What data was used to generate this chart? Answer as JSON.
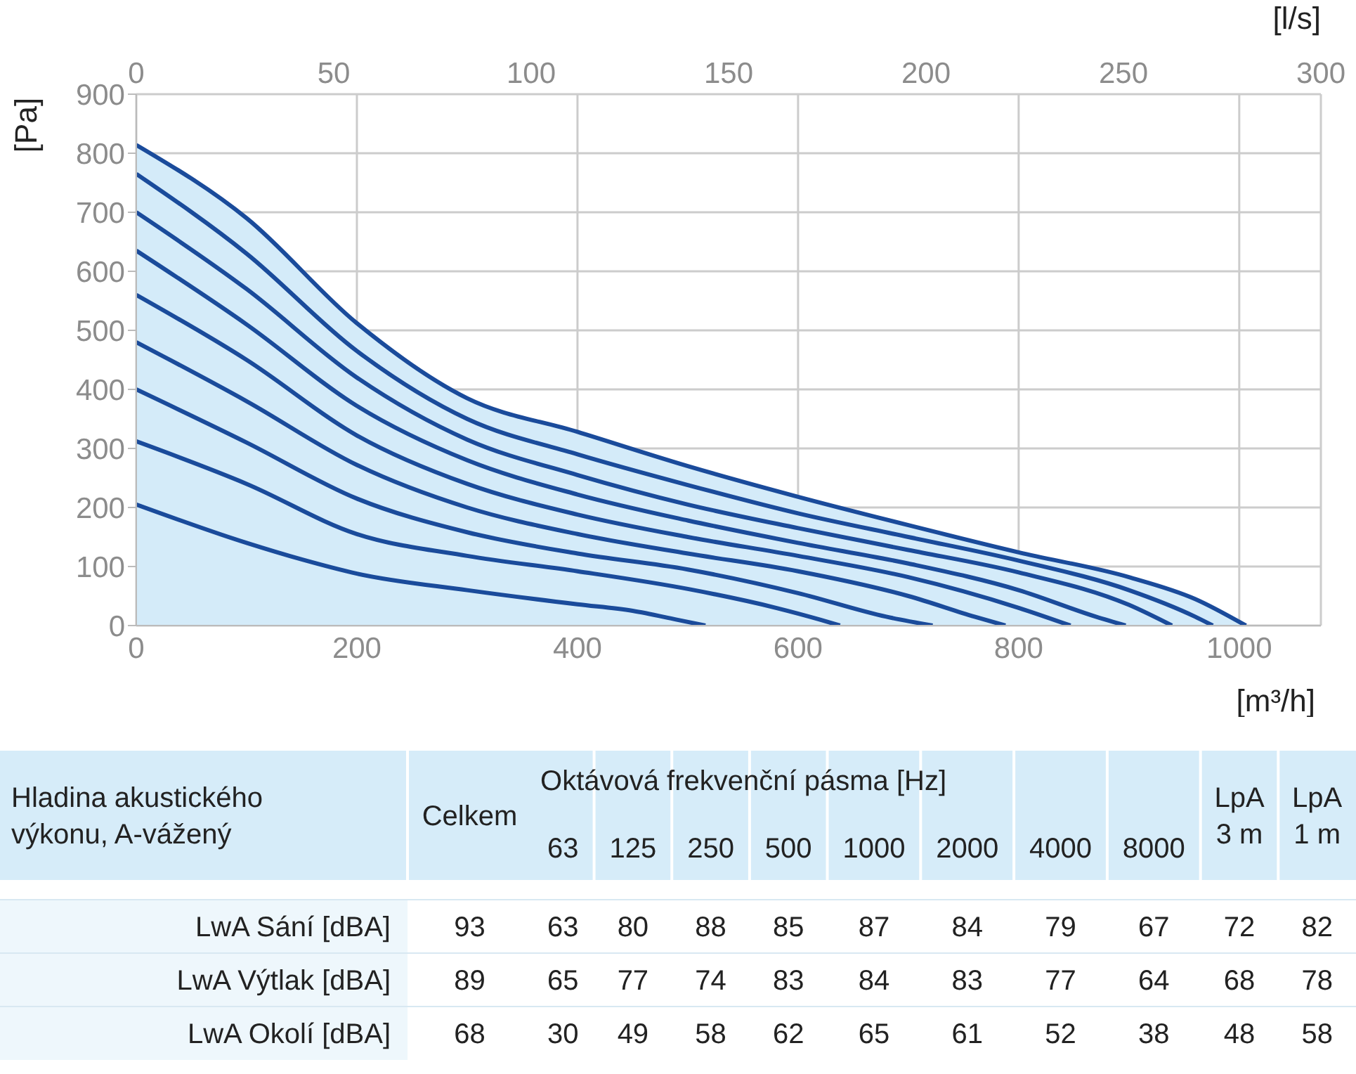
{
  "chart_data": [
    {
      "type": "line",
      "xlabel": "[m³/h]",
      "x2label": "[l/s]",
      "ylabel": "[Pa]",
      "xlim": [
        0,
        1074
      ],
      "xticks": [
        0,
        200,
        400,
        600,
        800,
        1000
      ],
      "x2lim": [
        0,
        300
      ],
      "x2ticks": [
        0,
        50,
        100,
        150,
        200,
        250,
        300
      ],
      "ylim": [
        0,
        900
      ],
      "yticks": [
        0,
        100,
        200,
        300,
        400,
        500,
        600,
        700,
        800,
        900
      ],
      "grid": true,
      "series": [
        {
          "type": "area",
          "color": "#1a4b9b",
          "x": [
            0,
            100,
            200,
            300,
            400,
            500,
            600,
            700,
            800,
            900,
            960,
            1006
          ],
          "values": [
            814,
            690,
            512,
            385,
            328,
            270,
            218,
            170,
            124,
            82,
            45,
            0
          ]
        },
        {
          "color": "#1a4b9b",
          "x": [
            0,
            100,
            200,
            300,
            400,
            500,
            600,
            700,
            800,
            900,
            960,
            976
          ],
          "values": [
            765,
            630,
            465,
            350,
            290,
            238,
            190,
            150,
            110,
            60,
            15,
            0
          ]
        },
        {
          "color": "#1a4b9b",
          "x": [
            0,
            100,
            200,
            300,
            400,
            500,
            600,
            700,
            800,
            900,
            939
          ],
          "values": [
            700,
            570,
            420,
            315,
            255,
            205,
            165,
            128,
            90,
            35,
            0
          ]
        },
        {
          "color": "#1a4b9b",
          "x": [
            0,
            100,
            200,
            300,
            400,
            500,
            600,
            700,
            800,
            870,
            897
          ],
          "values": [
            635,
            510,
            372,
            280,
            222,
            178,
            140,
            105,
            60,
            15,
            0
          ]
        },
        {
          "color": "#1a4b9b",
          "x": [
            0,
            100,
            200,
            300,
            400,
            500,
            600,
            700,
            800,
            847
          ],
          "values": [
            560,
            450,
            322,
            240,
            188,
            150,
            118,
            82,
            30,
            0
          ]
        },
        {
          "color": "#1a4b9b",
          "x": [
            0,
            100,
            200,
            300,
            400,
            500,
            600,
            700,
            760,
            788
          ],
          "values": [
            480,
            380,
            272,
            200,
            155,
            122,
            92,
            50,
            15,
            0
          ]
        },
        {
          "color": "#1a4b9b",
          "x": [
            0,
            100,
            200,
            300,
            400,
            500,
            600,
            680,
            722
          ],
          "values": [
            400,
            310,
            215,
            158,
            122,
            95,
            55,
            15,
            0
          ]
        },
        {
          "color": "#1a4b9b",
          "x": [
            0,
            100,
            200,
            300,
            400,
            500,
            580,
            620,
            638
          ],
          "values": [
            312,
            240,
            155,
            118,
            92,
            62,
            30,
            10,
            0
          ]
        },
        {
          "color": "#1a4b9b",
          "x": [
            0,
            100,
            150,
            200,
            300,
            400,
            450,
            490,
            516
          ],
          "values": [
            205,
            140,
            112,
            88,
            60,
            36,
            25,
            10,
            0
          ]
        }
      ]
    },
    {
      "type": "heatmap",
      "data_labels": true,
      "title": "Hladina akustického výkonu, A-vážený",
      "subtitle": "Oktávová frekvenční pásma [Hz]",
      "categories": [
        "Celkem",
        "63",
        "125",
        "250",
        "500",
        "1000",
        "2000",
        "4000",
        "8000",
        "LpA 3 m",
        "LpA 1 m"
      ],
      "y_categories": [
        "LwA Sání [dBA]",
        "LwA Výtlak [dBA]",
        "LwA Okolí [dBA]"
      ],
      "cells": [
        [
          93,
          63,
          80,
          88,
          85,
          87,
          84,
          79,
          67,
          72,
          82
        ],
        [
          89,
          65,
          77,
          74,
          83,
          84,
          83,
          77,
          64,
          68,
          78
        ],
        [
          68,
          30,
          49,
          58,
          62,
          65,
          61,
          52,
          38,
          48,
          58
        ]
      ]
    }
  ]
}
